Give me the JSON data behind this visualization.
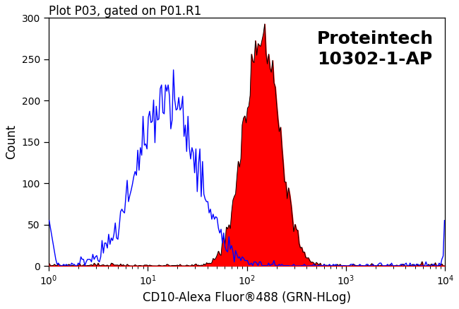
{
  "title": "Plot P03, gated on P01.R1",
  "xlabel": "CD10-Alexa Fluor®488 (GRN-HLog)",
  "ylabel": "Count",
  "annotation_line1": "Proteintech",
  "annotation_line2": "10302-1-AP",
  "xlim_log": [
    0.0,
    4.0
  ],
  "ylim": [
    0,
    300
  ],
  "yticks": [
    0,
    50,
    100,
    150,
    200,
    250,
    300
  ],
  "ytick_labels": [
    "0",
    "50",
    "100",
    "150",
    "200",
    "250",
    "300"
  ],
  "blue_color": "#0000FF",
  "red_color": "#FF0000",
  "black_color": "#000000",
  "bg_color": "#FFFFFF",
  "title_fontsize": 12,
  "label_fontsize": 12,
  "annot_fontsize": 18,
  "blue_peak_log": 1.2,
  "blue_peak_height": 237,
  "blue_std": 0.3,
  "blue_n": 7000,
  "red_peak_log": 2.15,
  "red_peak_height": 290,
  "red_std": 0.18,
  "red_n": 9000,
  "n_bins": 300,
  "seed": 42
}
